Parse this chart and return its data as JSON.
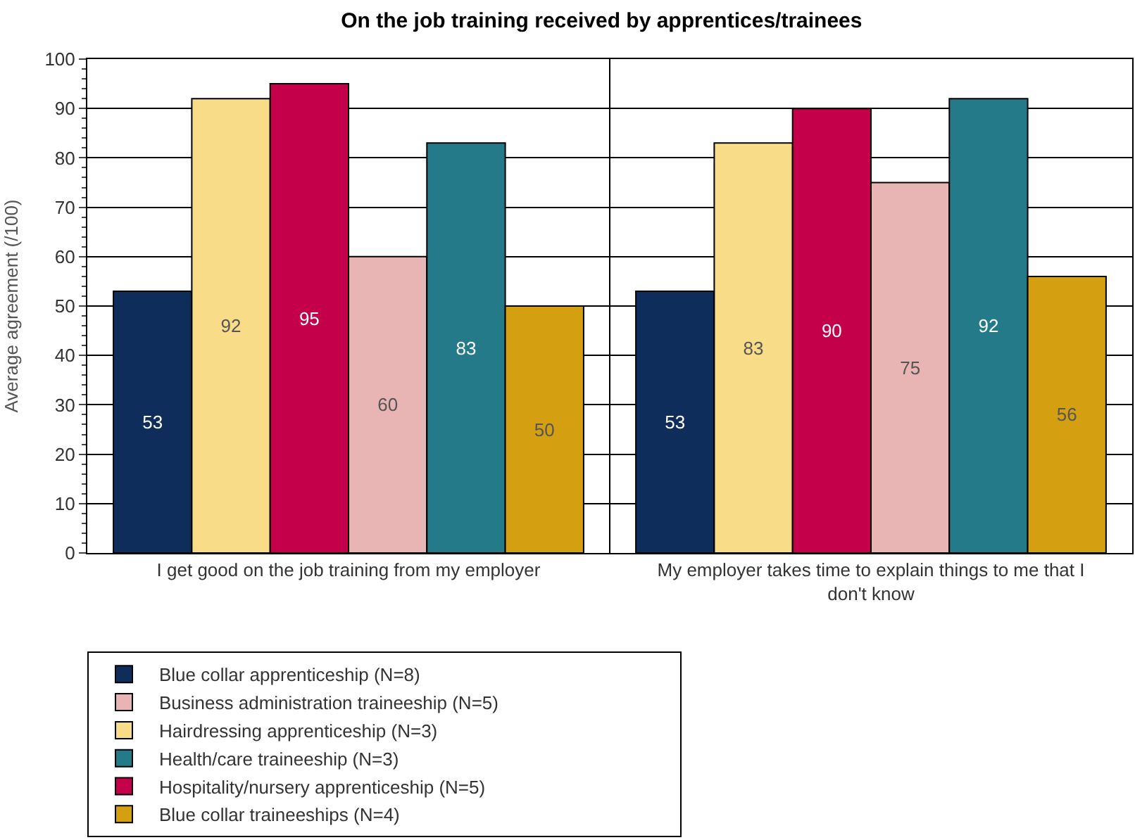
{
  "chart_data": {
    "type": "bar",
    "title": "On the job training received by apprentices/trainees",
    "ylabel": "Average agreement (/100)",
    "categories": [
      "I get good on the job training from my employer",
      "My employer takes time to explain things to me that I don't know"
    ],
    "series": [
      {
        "name": "Blue collar apprenticeship (N=8)",
        "color": "#0f2d5a",
        "values": [
          53,
          53
        ]
      },
      {
        "name": "Hairdressing apprenticeship (N=3)",
        "color": "#f8dc88",
        "values": [
          92,
          83
        ]
      },
      {
        "name": "Hospitality/nursery apprenticeship (N=5)",
        "color": "#c4004a",
        "values": [
          95,
          90
        ]
      },
      {
        "name": "Business administration traineeship (N=5)",
        "color": "#e8b4b4",
        "values": [
          60,
          75
        ]
      },
      {
        "name": "Health/care traineeship (N=3)",
        "color": "#257a8a",
        "values": [
          83,
          92
        ]
      },
      {
        "name": "Blue collar traineeships (N=4)",
        "color": "#d4a012",
        "values": [
          50,
          56
        ]
      }
    ],
    "ylim": [
      0,
      100
    ],
    "yticks": [
      0,
      10,
      20,
      30,
      40,
      50,
      60,
      70,
      80,
      90,
      100
    ],
    "grid": "y",
    "legend": "bottom",
    "data_labels": true
  }
}
